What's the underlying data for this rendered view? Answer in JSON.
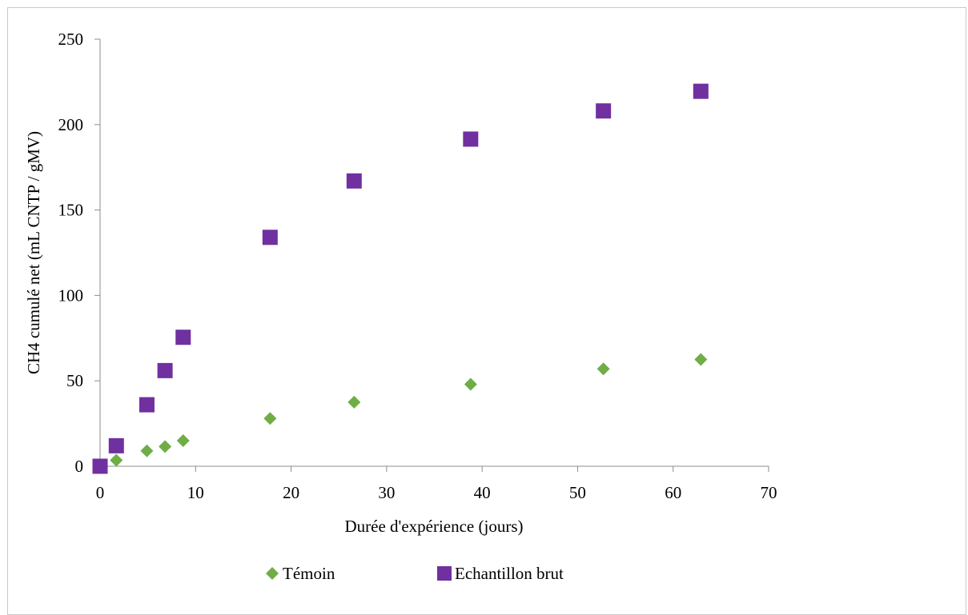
{
  "chart_data": {
    "type": "scatter",
    "title": "",
    "xlabel": "Durée d'expérience (jours)",
    "ylabel": "CH4 cumulé net  (mL CNTP / gMV)",
    "xlim": [
      0,
      70
    ],
    "ylim": [
      0,
      250
    ],
    "x_ticks": [
      0,
      10,
      20,
      30,
      40,
      50,
      60,
      70
    ],
    "y_ticks": [
      0,
      50,
      100,
      150,
      200,
      250
    ],
    "grid": false,
    "legend_position": "bottom",
    "series": [
      {
        "name": "Témoin",
        "marker": "diamond",
        "color": "#70ad47",
        "points": [
          [
            0,
            0
          ],
          [
            1.7,
            3.5
          ],
          [
            4.9,
            9
          ],
          [
            6.8,
            11.5
          ],
          [
            8.7,
            15
          ],
          [
            17.8,
            28
          ],
          [
            26.6,
            37.5
          ],
          [
            38.8,
            48
          ],
          [
            52.7,
            57
          ],
          [
            62.9,
            62.5
          ]
        ]
      },
      {
        "name": "Echantillon brut",
        "marker": "square",
        "color": "#7030a0",
        "points": [
          [
            0,
            0
          ],
          [
            1.7,
            12
          ],
          [
            4.9,
            36
          ],
          [
            6.8,
            56
          ],
          [
            8.7,
            75.5
          ],
          [
            17.8,
            134
          ],
          [
            26.6,
            167
          ],
          [
            38.8,
            191.5
          ],
          [
            52.7,
            208
          ],
          [
            62.9,
            219.5
          ]
        ]
      }
    ]
  }
}
